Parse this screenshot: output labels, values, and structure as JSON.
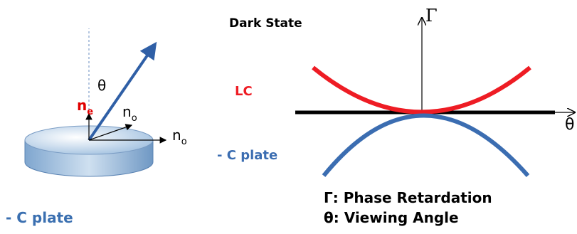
{
  "left": {
    "angle_label": "θ",
    "ne": {
      "base": "n",
      "sub": "e"
    },
    "no_inner": {
      "base": "n",
      "sub": "o"
    },
    "no_outer": {
      "base": "n",
      "sub": "o"
    },
    "caption": "- C plate"
  },
  "right": {
    "title": "Dark State",
    "y_axis": "Γ",
    "x_axis": "θ",
    "lc_label": "LC",
    "cplate_label": "- C plate",
    "legend": [
      "Γ: Phase Retardation",
      "θ: Viewing Angle"
    ]
  }
}
